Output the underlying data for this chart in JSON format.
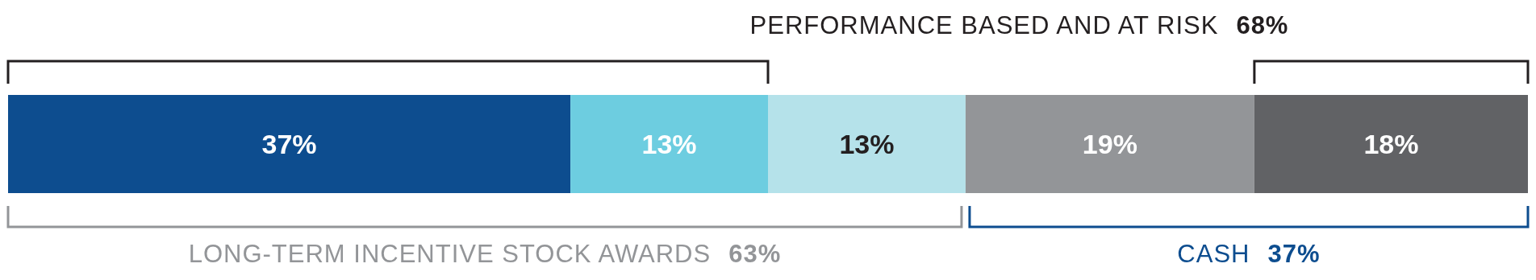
{
  "chart_data": {
    "type": "bar",
    "orientation": "horizontal",
    "stacked": true,
    "categories": [
      null
    ],
    "series": [
      {
        "color": "#0d4d8f",
        "values": [
          37
        ],
        "value_labels": [
          "37%"
        ]
      },
      {
        "color": "#6dcde0",
        "values": [
          13
        ],
        "value_labels": [
          "13%"
        ]
      },
      {
        "color": "#b5e2ea",
        "values": [
          13
        ],
        "value_labels": [
          "13%"
        ]
      },
      {
        "color": "#939598",
        "values": [
          19
        ],
        "value_labels": [
          "19%"
        ]
      },
      {
        "color": "#616265",
        "values": [
          18
        ],
        "value_labels": [
          "18%"
        ]
      }
    ],
    "tick_labels": false,
    "annotations": [
      "PERFORMANCE BASED AND AT RISK 68%",
      "LONG-TERM INCENTIVE STOCK AWARDS 63%",
      "CASH 37%"
    ]
  }
}
